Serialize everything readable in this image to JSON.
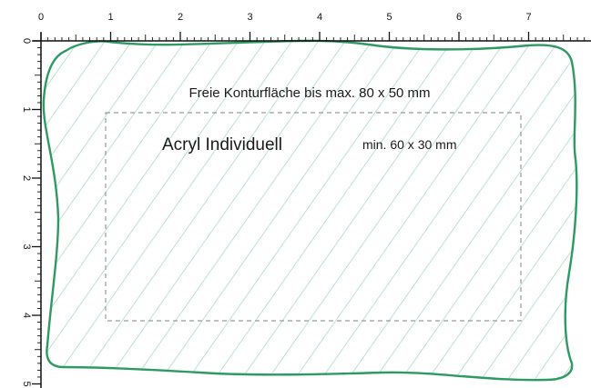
{
  "ruler": {
    "top_labels": [
      "0",
      "1",
      "2",
      "3",
      "4",
      "5",
      "6",
      "7"
    ],
    "left_labels": [
      "0",
      "1",
      "2",
      "3",
      "4",
      "5"
    ]
  },
  "texts": {
    "max_area": "Freie Konturfläche bis max. 80 x 50 mm",
    "product": "Acryl Individuell",
    "min_size": "min. 60 x 30 mm"
  },
  "colors": {
    "contour": "#2e9a63",
    "hatch": "#a9dcc0",
    "dashed_box": "#9a9a9a",
    "ruler": "#111111"
  }
}
